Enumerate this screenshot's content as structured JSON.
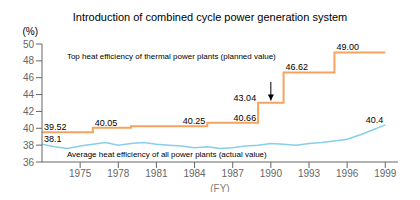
{
  "chart_data": {
    "type": "line",
    "title": "Introduction of combined cycle power generation system",
    "xlabel": "(FY)",
    "ylabel": "(%)",
    "xlim": [
      1972,
      2000
    ],
    "xticks": [
      1975,
      1978,
      1981,
      1984,
      1987,
      1990,
      1993,
      1996,
      1999
    ],
    "ylim": [
      36,
      50
    ],
    "yticks": [
      36,
      38,
      40,
      42,
      44,
      46,
      48,
      50
    ],
    "series": [
      {
        "name": "Top heat efficiency of thermal power plants (planned value)",
        "color": "#f4a460",
        "x": [
          1972,
          1976,
          1976,
          1979,
          1979,
          1985,
          1985,
          1989,
          1989,
          1991,
          1991,
          1995,
          1995,
          1999
        ],
        "values": [
          39.52,
          39.52,
          40.05,
          40.05,
          40.25,
          40.25,
          40.66,
          40.66,
          43.04,
          43.04,
          46.62,
          46.62,
          49.0,
          49.0
        ],
        "value_labels": [
          "39.52",
          null,
          "40.05",
          null,
          null,
          "40.25",
          null,
          "40.66",
          "43.04",
          null,
          "46.62",
          null,
          "49.00",
          null
        ]
      },
      {
        "name": "Average heat efficiency of all power plants (actual value)",
        "color": "#87ceeb",
        "x": [
          1972,
          1973,
          1974,
          1975,
          1976,
          1977,
          1978,
          1979,
          1980,
          1981,
          1982,
          1983,
          1984,
          1985,
          1986,
          1987,
          1988,
          1989,
          1990,
          1991,
          1992,
          1993,
          1994,
          1995,
          1996,
          1997,
          1998,
          1999
        ],
        "values": [
          38.1,
          37.8,
          37.6,
          37.9,
          38.1,
          38.3,
          38.0,
          38.2,
          38.3,
          38.1,
          38.0,
          37.9,
          37.7,
          37.8,
          37.6,
          37.7,
          37.9,
          38.0,
          38.2,
          38.1,
          38.0,
          38.2,
          38.3,
          38.5,
          38.7,
          39.2,
          39.8,
          40.4
        ],
        "value_labels": [
          "38.1",
          null,
          null,
          null,
          null,
          null,
          null,
          null,
          null,
          null,
          null,
          null,
          null,
          null,
          null,
          null,
          null,
          null,
          null,
          null,
          null,
          null,
          null,
          null,
          null,
          null,
          null,
          "40.4"
        ]
      }
    ],
    "annotations": [
      {
        "type": "arrow",
        "x": 1990,
        "y_start": 45.5,
        "y_end": 43.3,
        "color": "#000000"
      }
    ]
  }
}
